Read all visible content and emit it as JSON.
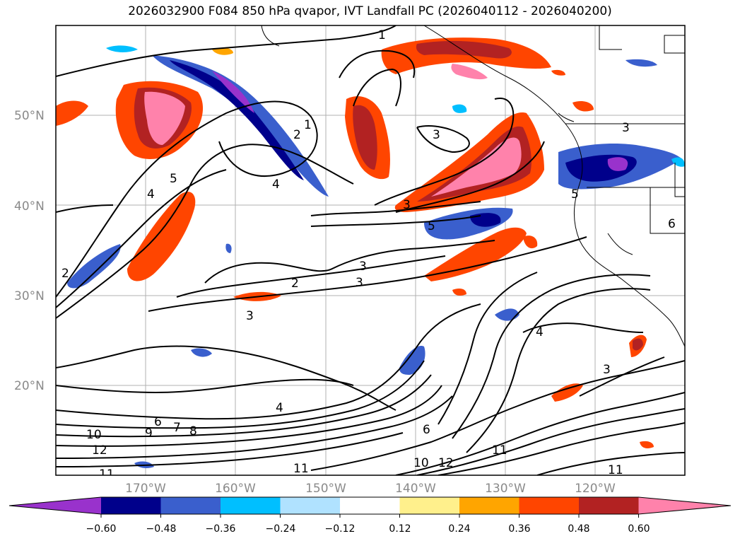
{
  "title": "2026032900 F084 850 hPa qvapor, IVT Landfall PC (2026040112 - 2026040200)",
  "lat_labels": [
    "50°N",
    "40°N",
    "30°N",
    "20°N"
  ],
  "lon_labels": [
    "170°W",
    "160°W",
    "150°W",
    "140°W",
    "130°W",
    "120°W"
  ],
  "colorbar": {
    "colors": [
      "#9932cc",
      "#00008b",
      "#3a5fcd",
      "#00bfff",
      "#b0e2ff",
      "#ffffff",
      "#fff08c",
      "#ffa500",
      "#ff4500",
      "#b22222",
      "#ff82ab"
    ],
    "tick_labels": [
      "−0.60",
      "−0.48",
      "−0.36",
      "−0.24",
      "−0.12",
      "0.12",
      "0.24",
      "0.36",
      "0.48",
      "0.60"
    ]
  },
  "contour_labels": [
    "1",
    "1",
    "2",
    "3",
    "4",
    "5",
    "4",
    "2",
    "3",
    "5",
    "3",
    "3",
    "2",
    "3",
    "3",
    "4",
    "3",
    "5",
    "4",
    "6",
    "7",
    "8",
    "9",
    "10",
    "12",
    "11",
    "11",
    "12",
    "10",
    "11",
    "11",
    "6",
    "6"
  ]
}
